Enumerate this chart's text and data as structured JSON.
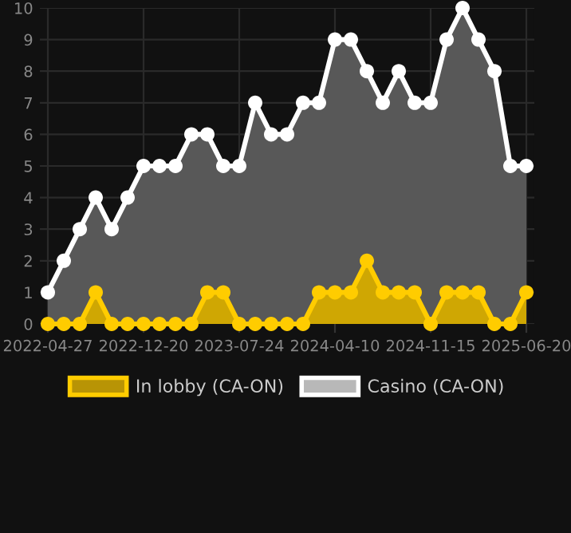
{
  "chart_data": {
    "type": "area",
    "categories": [
      "2022-04-27",
      null,
      null,
      null,
      null,
      null,
      "2022-12-20",
      null,
      null,
      null,
      null,
      null,
      "2023-07-24",
      null,
      null,
      null,
      null,
      null,
      "2024-04-10",
      null,
      null,
      null,
      null,
      null,
      "2024-11-15",
      null,
      null,
      null,
      null,
      null,
      "2025-06-20"
    ],
    "series": [
      {
        "name": "In lobby (CA-ON)",
        "color": "#ffcc00",
        "values": [
          0,
          0,
          0,
          1,
          0,
          0,
          0,
          0,
          0,
          0,
          1,
          1,
          0,
          0,
          0,
          0,
          0,
          1,
          1,
          1,
          2,
          1,
          1,
          1,
          0,
          1,
          1,
          1,
          0,
          0,
          1
        ]
      },
      {
        "name": "Casino (CA-ON)",
        "color": "#ffffff",
        "values": [
          1,
          2,
          3,
          4,
          3,
          4,
          5,
          5,
          5,
          6,
          6,
          5,
          5,
          7,
          6,
          6,
          7,
          7,
          9,
          9,
          8,
          7,
          8,
          7,
          7,
          9,
          10,
          9,
          8,
          5,
          5
        ]
      }
    ],
    "ylim": [
      0,
      10
    ],
    "yticks": [
      0,
      1,
      2,
      3,
      4,
      5,
      6,
      7,
      8,
      9,
      10
    ],
    "grid": true,
    "legend": "bottom",
    "marker": "circle"
  }
}
